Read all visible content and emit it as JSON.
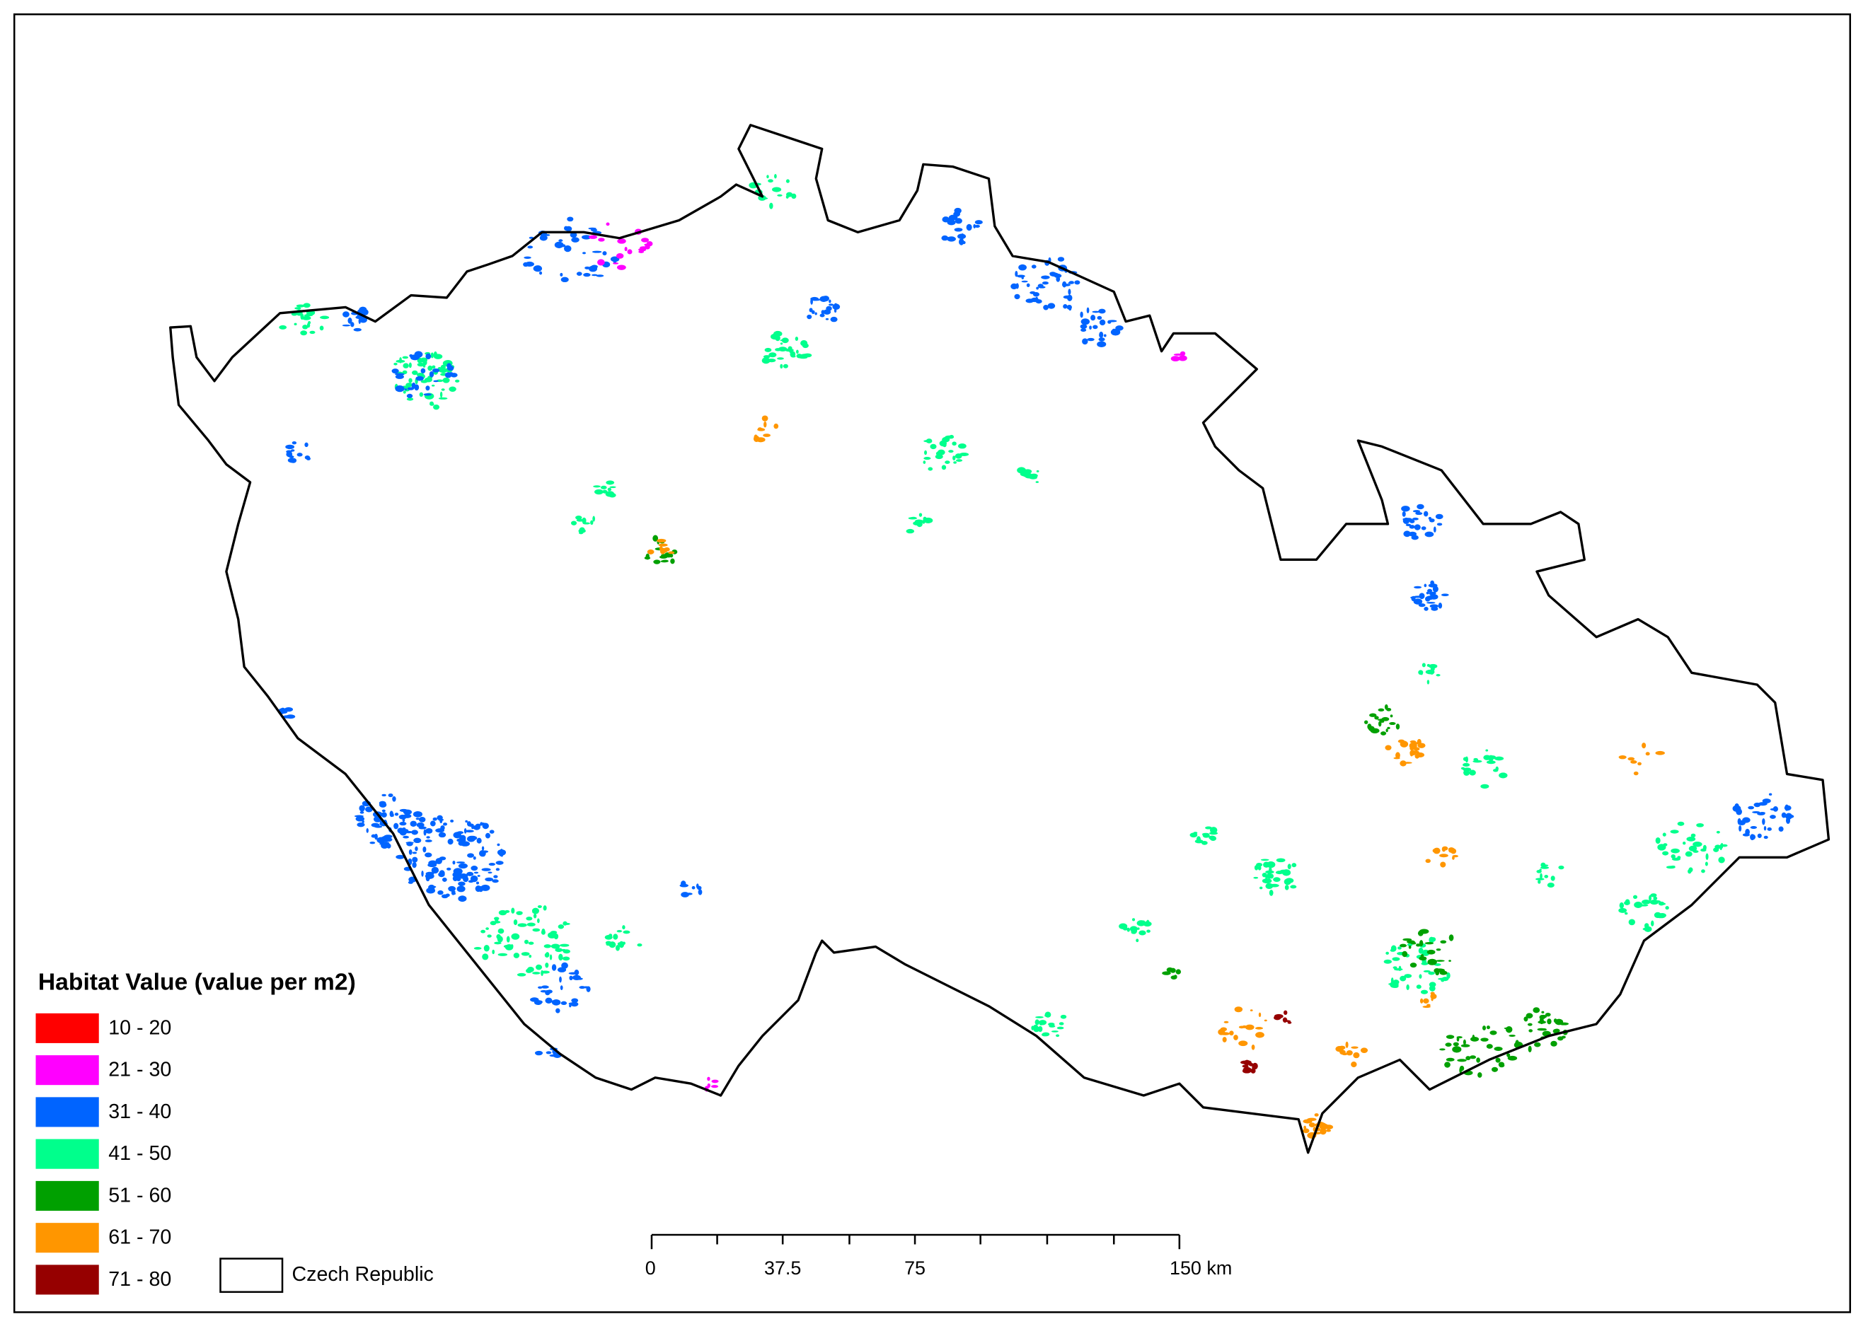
{
  "legend": {
    "title": "Habitat Value (value per m2)",
    "items": [
      {
        "label": "10 - 20",
        "color": "#ff0000"
      },
      {
        "label": "21 - 30",
        "color": "#ff00ff"
      },
      {
        "label": "31 - 40",
        "color": "#0064ff"
      },
      {
        "label": "41 - 50",
        "color": "#00ff8c"
      },
      {
        "label": "51 - 60",
        "color": "#00a000"
      },
      {
        "label": "61 - 70",
        "color": "#ff9600"
      },
      {
        "label": "71 - 80",
        "color": "#960000"
      }
    ],
    "boundary": "Czech Republic"
  },
  "scale_bar": {
    "labels": [
      "0",
      "37.5",
      "75",
      "150 km"
    ]
  }
}
